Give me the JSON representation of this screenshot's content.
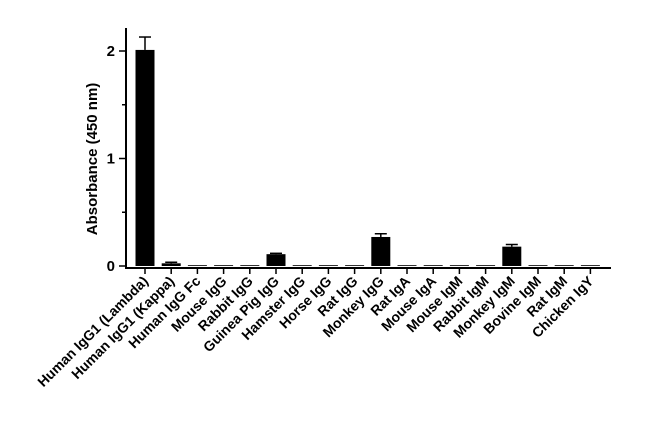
{
  "chart_data": {
    "type": "bar",
    "categories": [
      "Human IgG1 (Lambda)",
      "Human IgG1 (Kappa)",
      "Human IgG Fc",
      "Mouse IgG",
      "Rabbit IgG",
      "Guinea Pig IgG",
      "Hamster IgG",
      "Horse IgG",
      "Rat IgG",
      "Monkey IgG",
      "Rat IgA",
      "Mouse IgA",
      "Mouse IgM",
      "Rabbit IgM",
      "Monkey IgM",
      "Bovine IgM",
      "Rat IgM",
      "Chicken IgY"
    ],
    "values": [
      2.01,
      0.025,
      0.005,
      0.0,
      0.0,
      0.11,
      0.0,
      0.0,
      0.0,
      0.27,
      0.0,
      0.0,
      0.0,
      0.0,
      0.18,
      0.0,
      0.005,
      0.003
    ],
    "errors": [
      0.12,
      0.01,
      0.0,
      0.0,
      0.0,
      0.008,
      0.0,
      0.0,
      0.0,
      0.03,
      0.0,
      0.0,
      0.0,
      0.0,
      0.02,
      0.0,
      0.0,
      0.0
    ],
    "ylabel": "Absorbance (450 nm)",
    "ylim": [
      0,
      2.2
    ],
    "yticks": [
      "0",
      "1",
      "2"
    ],
    "grid": false,
    "bar_color": "#000000"
  }
}
